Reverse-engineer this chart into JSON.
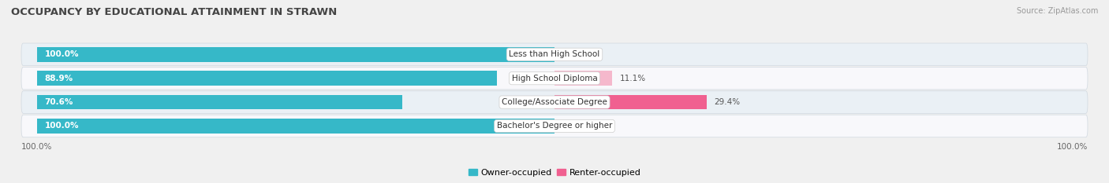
{
  "title": "OCCUPANCY BY EDUCATIONAL ATTAINMENT IN STRAWN",
  "source": "Source: ZipAtlas.com",
  "categories": [
    "Less than High School",
    "High School Diploma",
    "College/Associate Degree",
    "Bachelor's Degree or higher"
  ],
  "owner_values": [
    100.0,
    88.9,
    70.6,
    100.0
  ],
  "renter_values": [
    0.0,
    11.1,
    29.4,
    0.0
  ],
  "owner_color": "#36b8c8",
  "renter_color_high": "#f06090",
  "renter_color_low": "#f5b8cc",
  "row_bg_odd": "#eaf0f5",
  "row_bg_even": "#f8f8fb",
  "title_fontsize": 9.5,
  "label_fontsize": 7.5,
  "tick_fontsize": 7.5,
  "source_fontsize": 7,
  "x_axis_left_label": "100.0%",
  "x_axis_right_label": "100.0%",
  "renter_threshold": 15
}
